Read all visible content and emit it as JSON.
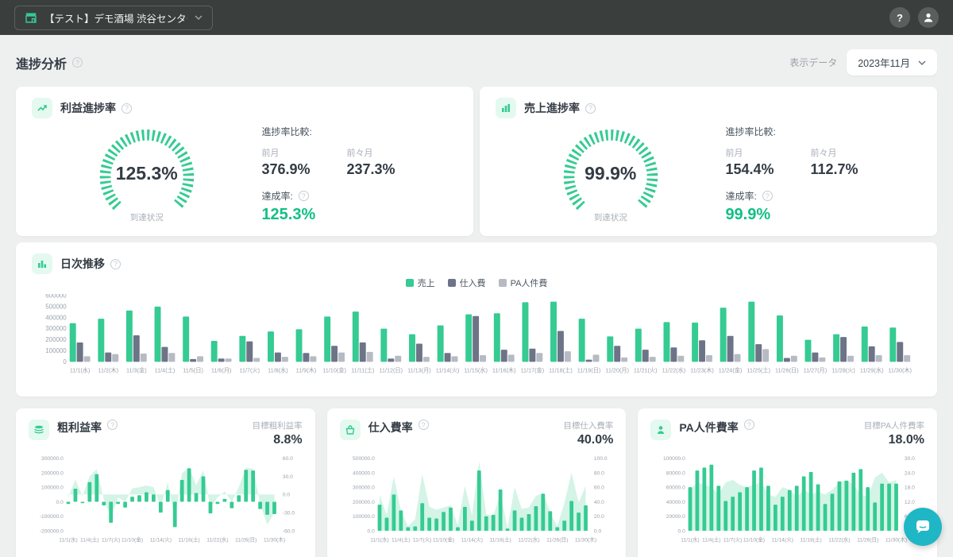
{
  "navbar": {
    "store_name": "【テスト】デモ酒場 渋谷センター街店"
  },
  "header": {
    "title": "進捗分析",
    "display_data_label": "表示データ",
    "period": "2023年11月"
  },
  "profit_card": {
    "title": "利益進捗率",
    "gauge_value": "125.3%",
    "gauge_caption": "到達状況",
    "comparison_label": "進捗率比較:",
    "prev_month_label": "前月",
    "prev_month_value": "376.9%",
    "prev_prev_month_label": "前々月",
    "prev_prev_month_value": "237.3%",
    "achievement_label": "達成率:",
    "achievement_value": "125.3%"
  },
  "sales_card": {
    "title": "売上進捗率",
    "gauge_value": "99.9%",
    "gauge_caption": "到達状況",
    "comparison_label": "進捗率比較:",
    "prev_month_label": "前月",
    "prev_month_value": "154.4%",
    "prev_prev_month_label": "前々月",
    "prev_prev_month_value": "112.7%",
    "achievement_label": "達成率:",
    "achievement_value": "99.9%"
  },
  "daily_card": {
    "title": "日次推移"
  },
  "gross_card": {
    "title": "粗利益率",
    "target_label": "目標粗利益率",
    "target_value": "8.8%"
  },
  "purchase_card": {
    "title": "仕入費率",
    "target_label": "目標仕入費率",
    "target_value": "40.0%"
  },
  "labor_card": {
    "title": "PA人件費率",
    "target_label": "目標PA人件費率",
    "target_value": "18.0%"
  },
  "colors": {
    "primary_green": "#35cb93",
    "achievement_green": "#12bf85",
    "dark_bar": "#6e7487",
    "light_bar": "#b6bac3",
    "chat_teal": "#1fb7c5"
  },
  "chart_data": [
    {
      "id": "daily",
      "type": "bar",
      "title": "日次推移",
      "categories": [
        "11/1(水)",
        "11/2(木)",
        "11/3(金)",
        "11/4(土)",
        "11/5(日)",
        "11/6(月)",
        "11/7(火)",
        "11/8(水)",
        "11/9(木)",
        "11/10(金)",
        "11/11(土)",
        "11/12(日)",
        "11/13(月)",
        "11/14(火)",
        "11/15(水)",
        "11/16(木)",
        "11/17(金)",
        "11/18(土)",
        "11/19(日)",
        "11/20(月)",
        "11/21(火)",
        "11/22(水)",
        "11/23(木)",
        "11/24(金)",
        "11/25(土)",
        "11/26(日)",
        "11/27(月)",
        "11/28(火)",
        "11/29(水)",
        "11/30(木)"
      ],
      "series": [
        {
          "name": "売上",
          "color": "#35cb93",
          "values": [
            350000,
            390000,
            465000,
            500000,
            410000,
            190000,
            235000,
            275000,
            295000,
            410000,
            455000,
            300000,
            250000,
            330000,
            430000,
            440000,
            540000,
            545000,
            390000,
            230000,
            300000,
            360000,
            355000,
            490000,
            545000,
            420000,
            200000,
            250000,
            320000,
            310000
          ]
        },
        {
          "name": "仕入費",
          "color": "#6e7487",
          "values": [
            175000,
            85000,
            240000,
            135000,
            25000,
            30000,
            185000,
            85000,
            80000,
            145000,
            175000,
            30000,
            165000,
            80000,
            415000,
            110000,
            120000,
            280000,
            20000,
            145000,
            110000,
            130000,
            195000,
            235000,
            160000,
            35000,
            85000,
            225000,
            140000,
            180000
          ]
        },
        {
          "name": "PA人件費",
          "color": "#b6bac3",
          "values": [
            50000,
            70000,
            75000,
            80000,
            50000,
            30000,
            35000,
            45000,
            50000,
            85000,
            90000,
            55000,
            45000,
            50000,
            60000,
            65000,
            80000,
            95000,
            65000,
            40000,
            45000,
            55000,
            60000,
            70000,
            115000,
            55000,
            40000,
            55000,
            60000,
            60000
          ]
        }
      ],
      "ylim": [
        0,
        600000
      ],
      "yticks": [
        "600000",
        "500000",
        "400000",
        "300000",
        "200000",
        "100000",
        "0"
      ],
      "legend_position": "top-center",
      "grid": false
    },
    {
      "id": "gross",
      "type": "combo",
      "title": "粗利益率",
      "left_ylim": [
        -200000,
        300000
      ],
      "right_ylim": [
        -60,
        60
      ],
      "left_ticks": [
        "300000.0",
        "200000.0",
        "100000.0",
        "0.0",
        "-100000.0",
        "-200000.0"
      ],
      "right_ticks": [
        "60.0",
        "30.0",
        "0.0",
        "-30.0",
        "-60.0"
      ],
      "xticks": [
        "11/1(水)",
        "11/4(土)",
        "11/7(火)",
        "11/10(金)",
        "11/14(火)",
        "11/18(土)",
        "11/22(水)",
        "11/26(日)",
        "11/30(木)"
      ],
      "xtick_idx": [
        0,
        3,
        6,
        9,
        13,
        17,
        21,
        25,
        29
      ],
      "bar_values": [
        -15000,
        90000,
        -10000,
        135000,
        190000,
        -25000,
        -145000,
        -15000,
        -40000,
        35000,
        45000,
        65000,
        50000,
        -75000,
        80000,
        -175000,
        150000,
        230000,
        60000,
        175000,
        -80000,
        -15000,
        20000,
        -45000,
        45000,
        220000,
        215000,
        -50000,
        -90000,
        -85000
      ],
      "line_values": [
        -5,
        25,
        -3,
        30,
        42,
        -8,
        -38,
        -5,
        -12,
        10,
        12,
        15,
        12,
        -20,
        20,
        -42,
        35,
        45,
        15,
        40,
        -22,
        -5,
        5,
        -12,
        12,
        44,
        43,
        -15,
        -50,
        -30
      ]
    },
    {
      "id": "purchase",
      "type": "combo",
      "title": "仕入費率",
      "left_ylim": [
        0,
        500000
      ],
      "right_ylim": [
        0,
        100
      ],
      "left_ticks": [
        "500000.0",
        "400000.0",
        "300000.0",
        "200000.0",
        "100000.0",
        "0.0"
      ],
      "right_ticks": [
        "100.0",
        "80.0",
        "60.0",
        "40.0",
        "20.0",
        "0.0"
      ],
      "xticks": [
        "11/1(水)",
        "11/4(土)",
        "11/7(火)",
        "11/10(金)",
        "11/14(火)",
        "11/18(土)",
        "11/22(水)",
        "11/26(日)",
        "11/30(木)"
      ],
      "xtick_idx": [
        0,
        3,
        6,
        9,
        13,
        17,
        21,
        25,
        29
      ],
      "bar_values": [
        180000,
        90000,
        250000,
        140000,
        25000,
        30000,
        190000,
        90000,
        85000,
        130000,
        160000,
        25000,
        165000,
        70000,
        415000,
        100000,
        110000,
        285000,
        15000,
        140000,
        90000,
        115000,
        170000,
        255000,
        135000,
        25000,
        70000,
        205000,
        125000,
        175000
      ],
      "line_values": [
        50,
        22,
        75,
        28,
        6,
        16,
        78,
        33,
        29,
        32,
        35,
        8,
        62,
        21,
        96,
        23,
        20,
        52,
        4,
        60,
        30,
        32,
        48,
        52,
        25,
        6,
        38,
        80,
        39,
        62
      ]
    },
    {
      "id": "labor",
      "type": "combo",
      "title": "PA人件費率",
      "left_ylim": [
        0,
        100000
      ],
      "right_ylim": [
        0,
        30
      ],
      "left_ticks": [
        "100000.0",
        "80000.0",
        "60000.0",
        "40000.0",
        "20000.0",
        "0.0"
      ],
      "right_ticks": [
        "30.0",
        "24.0",
        "18.0",
        "12.0",
        "6.0",
        "0.0"
      ],
      "xticks": [
        "11/1(水)",
        "11/4(土)",
        "11/7(火)",
        "11/10(金)",
        "11/14(火)",
        "11/18(土)",
        "11/22(水)",
        "11/26(日)",
        "11/30(木)"
      ],
      "xtick_idx": [
        0,
        3,
        6,
        9,
        13,
        17,
        21,
        25,
        29
      ],
      "bar_values": [
        60000,
        83000,
        87000,
        91000,
        62000,
        41000,
        47000,
        53000,
        60000,
        83000,
        87000,
        62000,
        36000,
        47000,
        56000,
        62000,
        75000,
        81000,
        64000,
        37000,
        51000,
        68000,
        69000,
        80000,
        85000,
        60000,
        39000,
        65000,
        65000,
        65000
      ],
      "line_values": [
        17,
        20,
        19,
        18,
        15,
        20,
        21,
        19,
        18,
        19,
        20,
        15,
        14,
        18,
        17,
        14,
        17,
        15,
        16,
        15,
        17,
        20,
        21,
        19,
        15,
        14,
        22,
        24,
        20,
        21
      ]
    }
  ]
}
